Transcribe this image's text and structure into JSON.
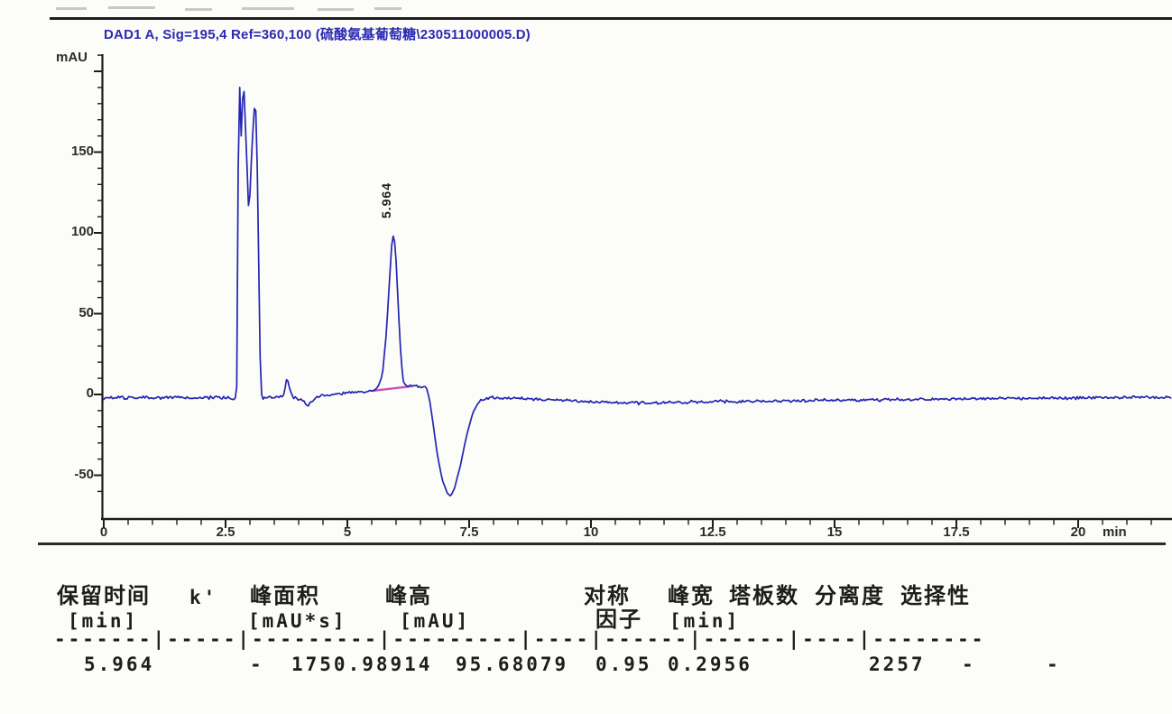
{
  "chart_data": {
    "type": "line",
    "title": "DAD1 A, Sig=195,4 Ref=360,100 (硫酸氨基葡萄糖\\230511000005.D)",
    "y_axis_label": "mAU",
    "x_axis_unit": "min",
    "x_tick_labels": [
      "0",
      "2.5",
      "5",
      "7.5",
      "10",
      "12.5",
      "15",
      "17.5",
      "20"
    ],
    "y_tick_labels": [
      "-50",
      "0",
      "50",
      "100",
      "150"
    ],
    "xlim": [
      0,
      21.9
    ],
    "ylim": [
      -69,
      212
    ],
    "x_minor_tick_step": 0.5,
    "y_minor_tick_step": 10,
    "grid": false,
    "legend": "none",
    "trace_color": "#2424b6",
    "noise_amplitude_mau": 1.1,
    "peak_annotation": {
      "label": "5.964",
      "t": 5.95,
      "apex_mau": 100
    },
    "integration_baseline": {
      "color": "#c853b8",
      "t1": 5.5,
      "v1": 2.2,
      "t2": 6.3,
      "v2": 5.0
    },
    "series": [
      {
        "name": "DAD1 A",
        "points": [
          [
            0,
            -2
          ],
          [
            0.3,
            -2
          ],
          [
            0.6,
            -2.2
          ],
          [
            0.9,
            -1.8
          ],
          [
            1.2,
            -2.2
          ],
          [
            1.5,
            -2
          ],
          [
            1.8,
            -2.3
          ],
          [
            2.1,
            -1.8
          ],
          [
            2.4,
            -2.2
          ],
          [
            2.6,
            -2
          ],
          [
            2.7,
            -2.3
          ],
          [
            2.73,
            5
          ],
          [
            2.76,
            140
          ],
          [
            2.78,
            202
          ],
          [
            2.805,
            172
          ],
          [
            2.825,
            156
          ],
          [
            2.845,
            180
          ],
          [
            2.87,
            195
          ],
          [
            2.91,
            165
          ],
          [
            2.98,
            109
          ],
          [
            3.04,
            152
          ],
          [
            3.11,
            187
          ],
          [
            3.16,
            130
          ],
          [
            3.19,
            60
          ],
          [
            3.22,
            5
          ],
          [
            3.25,
            -2.5
          ],
          [
            3.35,
            -2
          ],
          [
            3.5,
            -2
          ],
          [
            3.62,
            -1.5
          ],
          [
            3.7,
            0
          ],
          [
            3.76,
            11
          ],
          [
            3.82,
            3
          ],
          [
            3.88,
            -1.5
          ],
          [
            3.98,
            -2.5
          ],
          [
            4.08,
            -3.5
          ],
          [
            4.18,
            -7.5
          ],
          [
            4.24,
            -5
          ],
          [
            4.32,
            -2.5
          ],
          [
            4.45,
            -1
          ],
          [
            4.6,
            -0.5
          ],
          [
            4.8,
            0.5
          ],
          [
            5.0,
            1
          ],
          [
            5.2,
            1.5
          ],
          [
            5.35,
            1.8
          ],
          [
            5.5,
            2.2
          ],
          [
            5.62,
            4
          ],
          [
            5.72,
            12
          ],
          [
            5.8,
            38
          ],
          [
            5.86,
            68
          ],
          [
            5.91,
            92
          ],
          [
            5.95,
            100
          ],
          [
            5.99,
            89
          ],
          [
            6.04,
            58
          ],
          [
            6.1,
            22
          ],
          [
            6.15,
            8
          ],
          [
            6.2,
            5.5
          ],
          [
            6.35,
            5.5
          ],
          [
            6.5,
            5.2
          ],
          [
            6.62,
            4.5
          ],
          [
            6.68,
            -2
          ],
          [
            6.76,
            -18
          ],
          [
            6.85,
            -38
          ],
          [
            6.95,
            -53
          ],
          [
            7.05,
            -61
          ],
          [
            7.12,
            -63
          ],
          [
            7.2,
            -58
          ],
          [
            7.32,
            -44
          ],
          [
            7.45,
            -25
          ],
          [
            7.58,
            -11
          ],
          [
            7.7,
            -4.5
          ],
          [
            7.82,
            -2.5
          ],
          [
            8.0,
            -2
          ],
          [
            8.3,
            -2.2
          ],
          [
            8.6,
            -2.5
          ],
          [
            9.0,
            -3
          ],
          [
            9.4,
            -3.6
          ],
          [
            9.8,
            -4.2
          ],
          [
            10.2,
            -4.6
          ],
          [
            10.6,
            -5
          ],
          [
            11.0,
            -5.3
          ],
          [
            11.4,
            -5
          ],
          [
            11.8,
            -4.8
          ],
          [
            12.2,
            -4.6
          ],
          [
            12.6,
            -4.4
          ],
          [
            13.0,
            -4.4
          ],
          [
            13.5,
            -4.2
          ],
          [
            14.0,
            -4
          ],
          [
            14.5,
            -3.8
          ],
          [
            15.0,
            -3.6
          ],
          [
            15.5,
            -3.4
          ],
          [
            16.0,
            -3.3
          ],
          [
            16.5,
            -3.1
          ],
          [
            17.0,
            -3
          ],
          [
            17.5,
            -2.8
          ],
          [
            18.0,
            -2.6
          ],
          [
            18.5,
            -2.5
          ],
          [
            19.0,
            -2.4
          ],
          [
            19.5,
            -2.2
          ],
          [
            20.0,
            -2.1
          ],
          [
            20.5,
            -2
          ],
          [
            21.0,
            -1.9
          ],
          [
            21.5,
            -1.8
          ],
          [
            21.9,
            -1.6
          ]
        ]
      }
    ]
  },
  "table": {
    "headers": [
      {
        "line1": "保留时间",
        "line2": "[min]"
      },
      {
        "line1": "k'",
        "line2": ""
      },
      {
        "line1": "峰面积",
        "line2": "[mAU*s]"
      },
      {
        "line1": "峰高",
        "line2": "[mAU]"
      },
      {
        "line1": "对称",
        "line2": "因子"
      },
      {
        "line1": "峰宽",
        "line2": "[min]"
      },
      {
        "line1": "塔板数",
        "line2": ""
      },
      {
        "line1": "分离度",
        "line2": ""
      },
      {
        "line1": "选择性",
        "line2": ""
      }
    ],
    "separator": "-------|-----|---------|---------|----|------|------|----|--------",
    "row": [
      "5.964",
      "-",
      "1750.98914",
      "95.68079",
      "0.95",
      "0.2956",
      "2257",
      "-",
      "-"
    ]
  }
}
